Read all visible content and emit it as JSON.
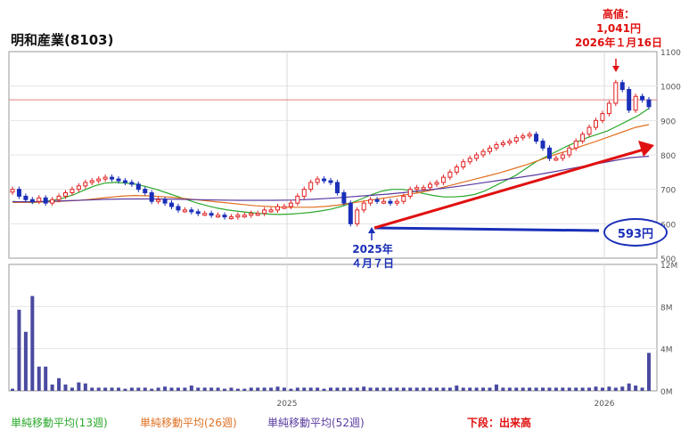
{
  "title": "明和産業(8103)",
  "annotations": {
    "high_label": "高値：",
    "high_value": "1,041円",
    "high_date": "2026年１月16日",
    "low_year": "2025年",
    "low_date": "４月７日",
    "callout": "593円"
  },
  "legend": {
    "ma13": "単純移動平均(13週)",
    "ma26": "単純移動平均(26週)",
    "ma52": "単純移動平均(52週)",
    "volume": "下段：出来高"
  },
  "colors": {
    "up": "#e02020",
    "down": "#1a2fb8",
    "ma13": "#2aa82a",
    "ma26": "#e07020",
    "ma52": "#5a3aa0",
    "volume": "#4a4aa0",
    "arrow": "#e01010",
    "callout": "#1a2fb8"
  },
  "chart_data": {
    "type": "candlestick",
    "x_tick_labels": [
      "2025",
      "2026"
    ],
    "price_axis": {
      "ylim": [
        500,
        1100
      ],
      "ticks": [
        500,
        600,
        700,
        800,
        900,
        1000,
        1100
      ]
    },
    "volume_axis": {
      "ylim": [
        0,
        12000000
      ],
      "ticks": [
        0,
        4000000,
        8000000,
        12000000
      ],
      "tick_labels": [
        "0M",
        "4M",
        "8M",
        "12M"
      ]
    },
    "reference_line": 960,
    "highlight": {
      "high": 1041,
      "low": 593
    },
    "weekly_close": [
      700,
      680,
      670,
      665,
      675,
      660,
      670,
      680,
      690,
      700,
      710,
      720,
      725,
      730,
      735,
      730,
      725,
      720,
      715,
      700,
      690,
      665,
      670,
      660,
      650,
      640,
      640,
      635,
      630,
      630,
      625,
      625,
      620,
      620,
      625,
      625,
      630,
      630,
      640,
      640,
      650,
      650,
      660,
      680,
      700,
      720,
      730,
      725,
      720,
      690,
      660,
      600,
      640,
      660,
      670,
      665,
      665,
      660,
      665,
      680,
      700,
      705,
      705,
      715,
      720,
      735,
      750,
      765,
      780,
      790,
      800,
      810,
      820,
      830,
      835,
      840,
      850,
      855,
      860,
      840,
      820,
      790,
      790,
      800,
      820,
      840,
      860,
      880,
      900,
      920,
      950,
      1010,
      990,
      930,
      970,
      960,
      940
    ],
    "volume": [
      200000,
      7700000,
      5600000,
      9000000,
      2300000,
      2300000,
      600000,
      1200000,
      600000,
      300000,
      800000,
      700000,
      300000,
      300000,
      300000,
      300000,
      300000,
      200000,
      300000,
      300000,
      300000,
      200000,
      300000,
      400000,
      300000,
      300000,
      300000,
      500000,
      300000,
      300000,
      300000,
      300000,
      200000,
      300000,
      200000,
      200000,
      300000,
      300000,
      300000,
      300000,
      400000,
      300000,
      200000,
      300000,
      300000,
      300000,
      300000,
      200000,
      300000,
      300000,
      300000,
      300000,
      300000,
      400000,
      300000,
      300000,
      300000,
      300000,
      300000,
      300000,
      300000,
      300000,
      300000,
      300000,
      300000,
      300000,
      300000,
      500000,
      300000,
      300000,
      300000,
      300000,
      300000,
      600000,
      300000,
      300000,
      300000,
      300000,
      300000,
      300000,
      300000,
      300000,
      300000,
      300000,
      300000,
      300000,
      300000,
      300000,
      400000,
      300000,
      400000,
      300000,
      400000,
      700000,
      500000,
      300000,
      3600000
    ],
    "ma13": [
      665,
      663,
      661,
      665,
      668,
      675,
      685,
      698,
      710,
      718,
      720,
      718,
      715,
      708,
      700,
      690,
      680,
      670,
      660,
      652,
      645,
      640,
      636,
      633,
      630,
      628,
      627,
      628,
      630,
      633,
      637,
      642,
      650,
      660,
      672,
      685,
      695,
      700,
      700,
      695,
      688,
      682,
      678,
      678,
      680,
      685,
      695,
      710,
      725,
      740,
      760,
      780,
      795,
      810,
      825,
      838,
      850,
      860,
      870,
      885,
      900,
      915,
      935
    ],
    "ma26": [
      662,
      662,
      663,
      664,
      666,
      668,
      672,
      676,
      680,
      682,
      681,
      679,
      676,
      672,
      668,
      664,
      660,
      656,
      652,
      650,
      648,
      648,
      648,
      650,
      654,
      660,
      666,
      672,
      678,
      684,
      690,
      698,
      708,
      718,
      728,
      738,
      748,
      760,
      772,
      786,
      800,
      812,
      825,
      838,
      852,
      866,
      880,
      888
    ],
    "ma52": [
      664,
      664,
      665,
      667,
      669,
      671,
      672,
      672,
      672,
      671,
      670,
      669,
      668,
      668,
      668,
      669,
      671,
      674,
      678,
      682,
      686,
      691,
      697,
      703,
      710,
      718,
      726,
      734,
      742,
      752,
      762,
      772,
      782,
      792,
      796
    ]
  }
}
